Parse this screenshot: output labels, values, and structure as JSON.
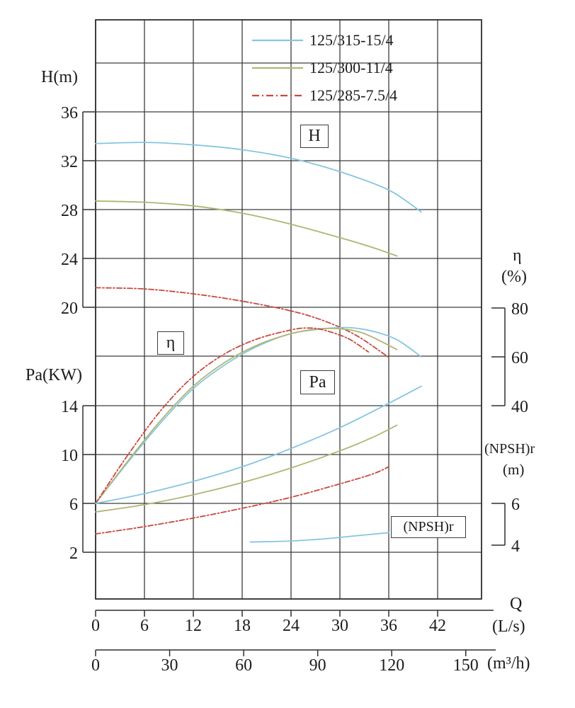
{
  "chart_data": {
    "type": "line",
    "title": "",
    "description": "Centrifugal pump performance curves: head H, efficiency η, shaft power Pa and (NPSH)r versus flow rate Q for three pump models",
    "legend": {
      "position": "top-right-inside",
      "items": [
        {
          "label": "125/315-15/4",
          "color": "#85c6e0",
          "dash": "solid"
        },
        {
          "label": "125/300-11/4",
          "color": "#b2b573",
          "dash": "solid"
        },
        {
          "label": "125/285-7.5/4",
          "color": "#c9493f",
          "dash": "dashdot"
        }
      ]
    },
    "curve_labels": {
      "h": "H",
      "eta": "η",
      "pa": "Pa",
      "npsh": "(NPSH)r"
    },
    "axes": {
      "h": {
        "title": "H(m)",
        "ticks": [
          36,
          32,
          28,
          24,
          20
        ],
        "range": [
          2,
          40
        ]
      },
      "pa": {
        "title": "Pa(KW)",
        "ticks": [
          14,
          10,
          6,
          2
        ],
        "range": [
          2,
          16
        ]
      },
      "eta": {
        "title": "η",
        "unit": "(%)",
        "ticks": [
          80,
          60,
          40
        ],
        "range": [
          0,
          80
        ]
      },
      "npsh": {
        "title": "(NPSH)r",
        "unit": "(m)",
        "ticks": [
          6,
          4
        ],
        "range": [
          4,
          6
        ]
      },
      "q_ls": {
        "title": "Q",
        "unit": "(L/s)",
        "ticks": [
          0,
          6,
          12,
          18,
          24,
          30,
          36,
          42
        ],
        "range": [
          0,
          47
        ]
      },
      "q_m3h": {
        "unit": "(m³/h)",
        "ticks": [
          0,
          30,
          60,
          90,
          120,
          150
        ],
        "range": [
          0,
          162
        ]
      }
    },
    "grid": {
      "q_lines": [
        0,
        6,
        12,
        18,
        24,
        30,
        36,
        42
      ],
      "h_lines": [
        40,
        36,
        32,
        28,
        24,
        20,
        16
      ],
      "pa_lines": [
        14,
        10,
        6,
        2
      ]
    },
    "series": [
      {
        "model": "125/315-15/4",
        "quantity": "H",
        "unit": "m",
        "axis": "H",
        "points": [
          [
            0,
            33.4
          ],
          [
            6,
            33.5
          ],
          [
            12,
            33.3
          ],
          [
            18,
            32.9
          ],
          [
            24,
            32.2
          ],
          [
            30,
            31.1
          ],
          [
            36,
            29.6
          ],
          [
            40,
            27.8
          ]
        ]
      },
      {
        "model": "125/300-11/4",
        "quantity": "H",
        "unit": "m",
        "axis": "H",
        "points": [
          [
            0,
            28.7
          ],
          [
            6,
            28.6
          ],
          [
            12,
            28.3
          ],
          [
            18,
            27.7
          ],
          [
            24,
            26.8
          ],
          [
            30,
            25.7
          ],
          [
            34,
            24.9
          ],
          [
            37,
            24.2
          ]
        ]
      },
      {
        "model": "125/285-7.5/4",
        "quantity": "H",
        "unit": "m",
        "axis": "H",
        "points": [
          [
            0,
            21.6
          ],
          [
            6,
            21.5
          ],
          [
            12,
            21.1
          ],
          [
            18,
            20.5
          ],
          [
            24,
            19.7
          ],
          [
            28,
            18.9
          ],
          [
            32,
            17.7
          ],
          [
            36,
            15.9
          ]
        ]
      },
      {
        "model": "125/315-15/4",
        "quantity": "η",
        "unit": "%",
        "axis": "eta",
        "points": [
          [
            0,
            0
          ],
          [
            4,
            17
          ],
          [
            8,
            33
          ],
          [
            12,
            47
          ],
          [
            16,
            57
          ],
          [
            20,
            64.5
          ],
          [
            24,
            69.5
          ],
          [
            28,
            71.5
          ],
          [
            31,
            72
          ],
          [
            34,
            70.5
          ],
          [
            37,
            67
          ],
          [
            40,
            60
          ]
        ]
      },
      {
        "model": "125/300-11/4",
        "quantity": "η",
        "unit": "%",
        "axis": "eta",
        "points": [
          [
            0,
            0
          ],
          [
            4,
            17.5
          ],
          [
            8,
            34
          ],
          [
            12,
            48
          ],
          [
            16,
            58
          ],
          [
            20,
            65
          ],
          [
            24,
            69.5
          ],
          [
            27,
            71.3
          ],
          [
            30,
            71.5
          ],
          [
            33,
            69.5
          ],
          [
            37,
            63
          ]
        ]
      },
      {
        "model": "125/285-7.5/4",
        "quantity": "η",
        "unit": "%",
        "axis": "eta",
        "points": [
          [
            0,
            0
          ],
          [
            4,
            20
          ],
          [
            8,
            38
          ],
          [
            12,
            52
          ],
          [
            16,
            61.5
          ],
          [
            20,
            67.5
          ],
          [
            24,
            71
          ],
          [
            26,
            71.8
          ],
          [
            28,
            71
          ],
          [
            31,
            67.5
          ],
          [
            33.5,
            62
          ]
        ]
      },
      {
        "model": "125/315-15/4",
        "quantity": "Pa",
        "unit": "KW",
        "axis": "Pa",
        "points": [
          [
            0,
            6.0
          ],
          [
            6,
            6.8
          ],
          [
            12,
            7.8
          ],
          [
            18,
            9.0
          ],
          [
            24,
            10.5
          ],
          [
            30,
            12.2
          ],
          [
            36,
            14.2
          ],
          [
            40,
            15.6
          ]
        ]
      },
      {
        "model": "125/300-11/4",
        "quantity": "Pa",
        "unit": "KW",
        "axis": "Pa",
        "points": [
          [
            0,
            5.3
          ],
          [
            6,
            5.9
          ],
          [
            12,
            6.7
          ],
          [
            18,
            7.7
          ],
          [
            24,
            8.9
          ],
          [
            30,
            10.3
          ],
          [
            34,
            11.4
          ],
          [
            37,
            12.4
          ]
        ]
      },
      {
        "model": "125/285-7.5/4",
        "quantity": "Pa",
        "unit": "KW",
        "axis": "Pa",
        "points": [
          [
            0,
            3.5
          ],
          [
            6,
            4.1
          ],
          [
            12,
            4.8
          ],
          [
            18,
            5.6
          ],
          [
            24,
            6.5
          ],
          [
            30,
            7.6
          ],
          [
            34,
            8.4
          ],
          [
            36,
            9.0
          ]
        ]
      },
      {
        "model": "125/315-15/4",
        "quantity": "(NPSH)r",
        "unit": "m",
        "axis": "npsh",
        "points": [
          [
            19,
            4.15
          ],
          [
            24,
            4.2
          ],
          [
            28,
            4.3
          ],
          [
            32,
            4.45
          ],
          [
            36,
            4.6
          ]
        ]
      }
    ]
  }
}
